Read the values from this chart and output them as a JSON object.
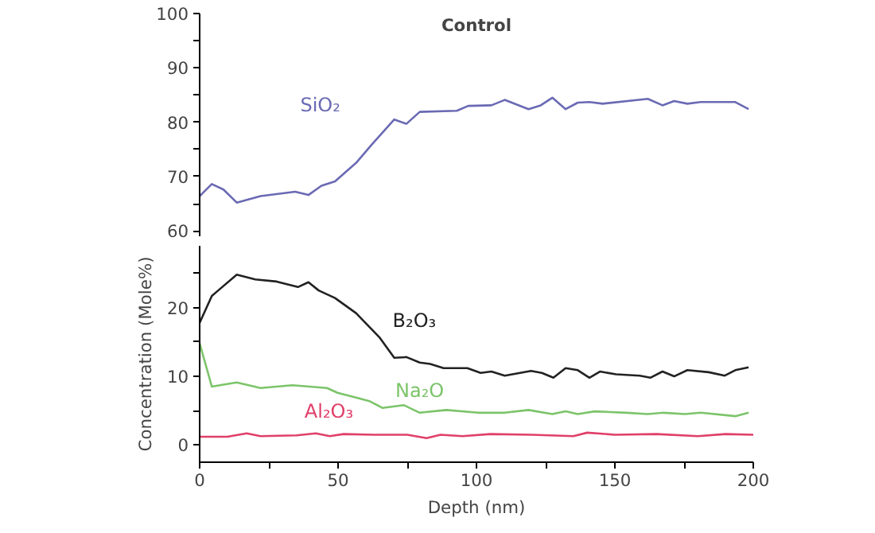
{
  "chart_data": [
    {
      "type": "line",
      "title": "Control",
      "xlim": [
        0,
        200
      ],
      "ylim": [
        59,
        100
      ],
      "yticks": [
        {
          "value": 60,
          "label": "60"
        },
        {
          "value": 65,
          "label": null
        },
        {
          "value": 70,
          "label": "70"
        },
        {
          "value": 75,
          "label": null
        },
        {
          "value": 80,
          "label": "80"
        },
        {
          "value": 85,
          "label": null
        },
        {
          "value": 90,
          "label": "90"
        },
        {
          "value": 95,
          "label": null
        },
        {
          "value": 100,
          "label": "100"
        }
      ],
      "tick_labels": "y",
      "series": [
        {
          "name": "SiO₂",
          "color": "#6a6ab4",
          "x": [
            0,
            4.4,
            8.6,
            13.4,
            22,
            34.5,
            39.3,
            44,
            48.9,
            56.5,
            62.2,
            70.3,
            74.7,
            79.5,
            92.9,
            97,
            105.4,
            110.2,
            118.8,
            123.2,
            127.4,
            132.2,
            136.6,
            140.8,
            145.6,
            161.9,
            167.2,
            171.4,
            176.2,
            181,
            193.5,
            198.3
          ],
          "values": [
            66.4,
            68.6,
            67.6,
            65.2,
            66.4,
            67.2,
            66.6,
            68.3,
            69.1,
            72.5,
            75.9,
            80.5,
            79.7,
            81.9,
            82.1,
            83,
            83.1,
            84.1,
            82.4,
            83.1,
            84.5,
            82.4,
            83.6,
            83.7,
            83.4,
            84.3,
            83.1,
            83.9,
            83.4,
            83.7,
            83.7,
            82.4
          ]
        }
      ]
    },
    {
      "type": "line",
      "xlabel": "Depth (nm)",
      "ylabel": "Concentration (Mole%)",
      "xlim": [
        0,
        200
      ],
      "xticks": [
        0,
        {
          "value": 25,
          "label": null
        },
        50,
        {
          "value": 75,
          "label": null
        },
        100,
        {
          "value": 125,
          "label": null
        },
        150,
        {
          "value": 175,
          "label": null
        },
        200
      ],
      "ylim": [
        -2.5,
        29
      ],
      "yticks": [
        0,
        {
          "value": 5,
          "label": null
        },
        10,
        {
          "value": 15,
          "label": null
        },
        20,
        {
          "value": 25,
          "label": null
        }
      ],
      "series": [
        {
          "name": "B₂O₃",
          "color": "#222222",
          "x": [
            0,
            4.4,
            6.7,
            13.4,
            20.1,
            27.8,
            35.5,
            39.3,
            43,
            48.9,
            56.5,
            65.1,
            70.3,
            74.7,
            79.5,
            83.3,
            88.1,
            96.7,
            101.5,
            105.4,
            110.2,
            119.7,
            123.6,
            127.8,
            132.2,
            136.6,
            140.8,
            144.6,
            150.4,
            159,
            162.8,
            167.2,
            171.4,
            176.2,
            183.9,
            189.7,
            193.5,
            198.3
          ],
          "values": [
            17.8,
            21.7,
            22.5,
            24.8,
            24.1,
            23.8,
            23,
            23.7,
            22.5,
            21.4,
            19.2,
            15.6,
            12.7,
            12.8,
            12,
            11.8,
            11.2,
            11.2,
            10.5,
            10.7,
            10.1,
            10.8,
            10.5,
            9.8,
            11.2,
            10.9,
            9.8,
            10.7,
            10.3,
            10.1,
            9.8,
            10.7,
            10,
            10.9,
            10.6,
            10.1,
            10.9,
            11.3
          ]
        },
        {
          "name": "Na₂O",
          "color": "#7cc46a",
          "x": [
            0,
            4.4,
            8.6,
            13.4,
            22,
            33.5,
            46,
            49.8,
            58.4,
            61.3,
            66.1,
            73.8,
            79.5,
            89.1,
            100.6,
            110.2,
            118.8,
            127.4,
            132.2,
            136.6,
            142.7,
            154.2,
            161.9,
            167.6,
            175.3,
            181,
            193.5,
            198.3
          ],
          "values": [
            14.8,
            8.5,
            8.8,
            9.1,
            8.3,
            8.7,
            8.3,
            7.6,
            6.7,
            6.4,
            5.4,
            5.8,
            4.7,
            5.1,
            4.7,
            4.7,
            5.1,
            4.5,
            4.9,
            4.5,
            4.9,
            4.7,
            4.5,
            4.7,
            4.5,
            4.7,
            4.2,
            4.7
          ]
        },
        {
          "name": "Al₂O₃",
          "color": "#e0406a",
          "x": [
            0,
            10,
            17,
            22,
            35,
            42,
            47,
            52,
            63,
            75,
            82,
            87,
            95,
            105,
            120,
            135,
            140,
            150,
            165,
            180,
            190,
            200
          ],
          "values": [
            1.2,
            1.2,
            1.7,
            1.3,
            1.4,
            1.7,
            1.3,
            1.6,
            1.5,
            1.5,
            1,
            1.5,
            1.3,
            1.6,
            1.5,
            1.3,
            1.8,
            1.5,
            1.6,
            1.3,
            1.6,
            1.5
          ]
        }
      ]
    }
  ]
}
